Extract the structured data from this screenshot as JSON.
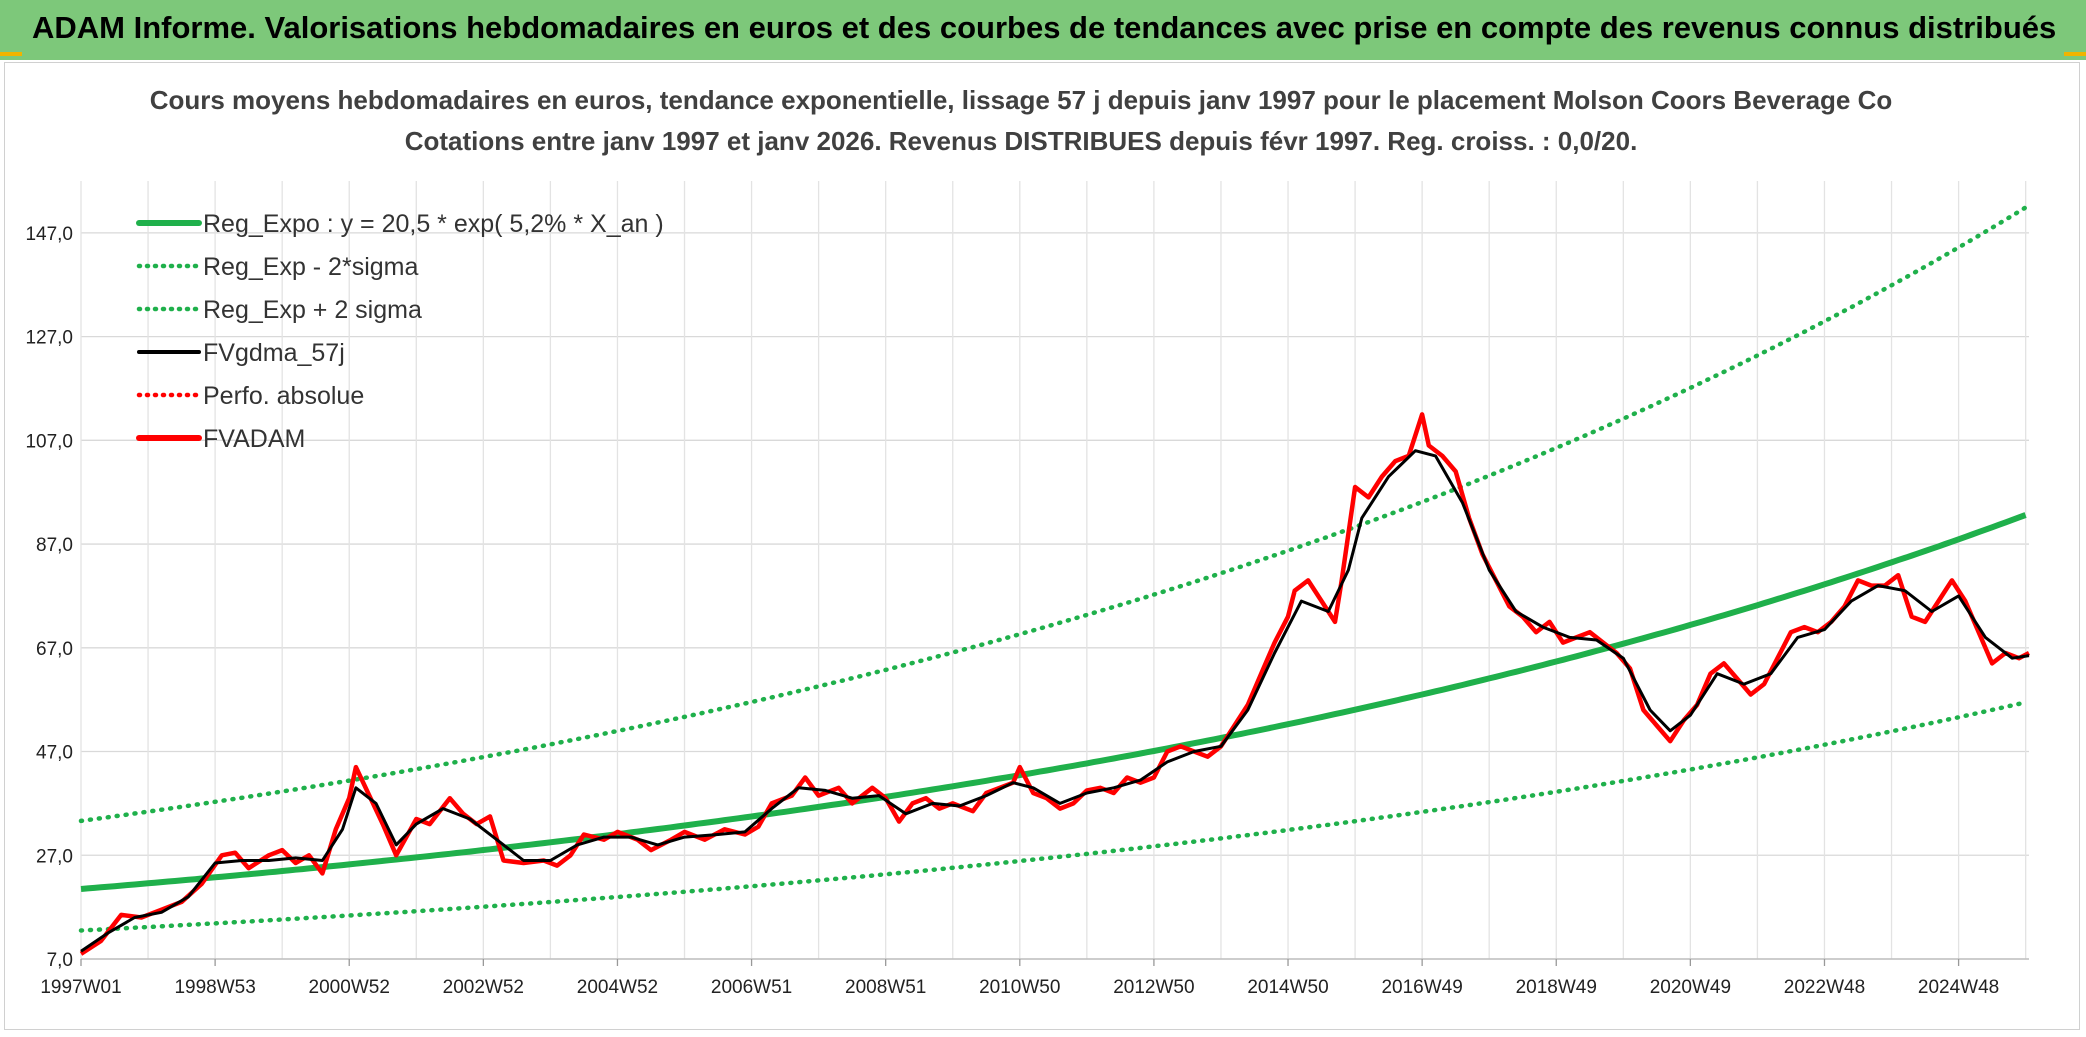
{
  "banner": {
    "title": "ADAM Informe. Valorisations hebdomadaires en euros et des courbes de tendances avec prise en compte des revenus connus distribués",
    "color": "#7dc87a"
  },
  "chart_data": {
    "type": "line",
    "title_lines": [
      "Cours moyens hebdomadaires en euros, tendance exponentielle, lissage 57 j depuis janv 1997 pour le placement Molson Coors Beverage Co",
      "Cotations entre janv 1997 et janv 2026. Revenus DISTRIBUES depuis févr 1997. Reg. croiss. : 0,0/20."
    ],
    "xlabel": "",
    "ylabel": "",
    "x_tick_labels": [
      "1997W01",
      "1998W53",
      "2000W52",
      "2002W52",
      "2004W52",
      "2006W51",
      "2008W51",
      "2010W50",
      "2012W50",
      "2014W50",
      "2016W49",
      "2018W49",
      "2020W49",
      "2022W48",
      "2024W48"
    ],
    "x_tick_years": [
      1997.0,
      1999.0,
      2001.0,
      2003.0,
      2005.0,
      2007.0,
      2009.0,
      2011.0,
      2013.0,
      2015.0,
      2017.0,
      2019.0,
      2021.0,
      2023.0,
      2025.0
    ],
    "x_range": [
      1997.0,
      2026.05
    ],
    "y_tick_labels": [
      "7,0",
      "27,0",
      "47,0",
      "67,0",
      "87,0",
      "107,0",
      "127,0",
      "147,0"
    ],
    "y_ticks": [
      7,
      27,
      47,
      67,
      87,
      107,
      127,
      147
    ],
    "ylim": [
      7,
      157
    ],
    "grid": true,
    "legend_position": "top-left",
    "regression": {
      "a": 20.5,
      "growth": 0.052,
      "sigma_factor": 1.64
    },
    "legend": [
      {
        "label": "Reg_Expo : y = 20,5 * exp( 5,2% *  X_an )",
        "color": "#1fb04b",
        "style": "solid-thick"
      },
      {
        "label": "Reg_Exp - 2*sigma",
        "color": "#1fb04b",
        "style": "dotted"
      },
      {
        "label": "Reg_Exp + 2 sigma",
        "color": "#1fb04b",
        "style": "dotted"
      },
      {
        "label": "FVgdma_57j",
        "color": "#000000",
        "style": "solid"
      },
      {
        "label": "Perfo. absolue",
        "color": "#ff0000",
        "style": "dotted"
      },
      {
        "label": "FVADAM",
        "color": "#ff0000",
        "style": "solid-thick"
      }
    ],
    "series": [
      {
        "name": "FVADAM",
        "points": [
          [
            1997.0,
            8.0
          ],
          [
            1997.3,
            10.5
          ],
          [
            1997.6,
            15.5
          ],
          [
            1997.9,
            15.0
          ],
          [
            1998.2,
            16.5
          ],
          [
            1998.5,
            18.0
          ],
          [
            1998.8,
            21.5
          ],
          [
            1999.1,
            27.0
          ],
          [
            1999.3,
            27.5
          ],
          [
            1999.5,
            24.5
          ],
          [
            1999.8,
            27.0
          ],
          [
            2000.0,
            28.0
          ],
          [
            2000.2,
            25.5
          ],
          [
            2000.4,
            27.0
          ],
          [
            2000.6,
            23.5
          ],
          [
            2000.8,
            32.0
          ],
          [
            2001.0,
            38.0
          ],
          [
            2001.1,
            44.0
          ],
          [
            2001.3,
            38.5
          ],
          [
            2001.5,
            33.0
          ],
          [
            2001.7,
            27.0
          ],
          [
            2002.0,
            34.0
          ],
          [
            2002.2,
            33.0
          ],
          [
            2002.5,
            38.0
          ],
          [
            2002.7,
            35.0
          ],
          [
            2002.9,
            33.0
          ],
          [
            2003.1,
            34.5
          ],
          [
            2003.3,
            26.0
          ],
          [
            2003.6,
            25.5
          ],
          [
            2003.9,
            26.0
          ],
          [
            2004.1,
            25.0
          ],
          [
            2004.3,
            27.0
          ],
          [
            2004.5,
            31.0
          ],
          [
            2004.8,
            30.0
          ],
          [
            2005.0,
            31.5
          ],
          [
            2005.3,
            30.0
          ],
          [
            2005.5,
            28.0
          ],
          [
            2005.8,
            30.0
          ],
          [
            2006.0,
            31.5
          ],
          [
            2006.3,
            30.0
          ],
          [
            2006.6,
            32.0
          ],
          [
            2006.9,
            31.0
          ],
          [
            2007.1,
            32.5
          ],
          [
            2007.3,
            37.0
          ],
          [
            2007.6,
            38.5
          ],
          [
            2007.8,
            42.0
          ],
          [
            2008.0,
            38.5
          ],
          [
            2008.3,
            40.0
          ],
          [
            2008.5,
            37.0
          ],
          [
            2008.8,
            40.0
          ],
          [
            2009.0,
            38.0
          ],
          [
            2009.2,
            33.5
          ],
          [
            2009.4,
            37.0
          ],
          [
            2009.6,
            38.0
          ],
          [
            2009.8,
            36.0
          ],
          [
            2010.0,
            37.0
          ],
          [
            2010.3,
            35.5
          ],
          [
            2010.5,
            39.0
          ],
          [
            2010.7,
            40.0
          ],
          [
            2010.9,
            41.0
          ],
          [
            2011.0,
            44.0
          ],
          [
            2011.2,
            39.0
          ],
          [
            2011.4,
            38.0
          ],
          [
            2011.6,
            36.0
          ],
          [
            2011.8,
            37.0
          ],
          [
            2012.0,
            39.5
          ],
          [
            2012.2,
            40.0
          ],
          [
            2012.4,
            39.0
          ],
          [
            2012.6,
            42.0
          ],
          [
            2012.8,
            41.0
          ],
          [
            2013.0,
            42.0
          ],
          [
            2013.2,
            47.0
          ],
          [
            2013.4,
            48.0
          ],
          [
            2013.6,
            47.0
          ],
          [
            2013.8,
            46.0
          ],
          [
            2014.0,
            48.0
          ],
          [
            2014.2,
            52.0
          ],
          [
            2014.4,
            56.0
          ],
          [
            2014.6,
            62.0
          ],
          [
            2014.8,
            68.0
          ],
          [
            2015.0,
            73.0
          ],
          [
            2015.1,
            78.0
          ],
          [
            2015.3,
            80.0
          ],
          [
            2015.5,
            76.0
          ],
          [
            2015.7,
            72.0
          ],
          [
            2015.8,
            80.0
          ],
          [
            2016.0,
            98.0
          ],
          [
            2016.2,
            96.0
          ],
          [
            2016.4,
            100.0
          ],
          [
            2016.6,
            103.0
          ],
          [
            2016.8,
            104.0
          ],
          [
            2017.0,
            112.0
          ],
          [
            2017.1,
            106.0
          ],
          [
            2017.3,
            104.0
          ],
          [
            2017.5,
            101.0
          ],
          [
            2017.7,
            92.0
          ],
          [
            2017.9,
            85.0
          ],
          [
            2018.1,
            80.0
          ],
          [
            2018.3,
            75.0
          ],
          [
            2018.5,
            73.0
          ],
          [
            2018.7,
            70.0
          ],
          [
            2018.9,
            72.0
          ],
          [
            2019.1,
            68.0
          ],
          [
            2019.3,
            69.0
          ],
          [
            2019.5,
            70.0
          ],
          [
            2019.7,
            68.0
          ],
          [
            2019.9,
            66.0
          ],
          [
            2020.1,
            63.0
          ],
          [
            2020.3,
            55.0
          ],
          [
            2020.5,
            52.0
          ],
          [
            2020.7,
            49.0
          ],
          [
            2020.9,
            53.0
          ],
          [
            2021.1,
            56.0
          ],
          [
            2021.3,
            62.0
          ],
          [
            2021.5,
            64.0
          ],
          [
            2021.7,
            61.0
          ],
          [
            2021.9,
            58.0
          ],
          [
            2022.1,
            60.0
          ],
          [
            2022.3,
            65.0
          ],
          [
            2022.5,
            70.0
          ],
          [
            2022.7,
            71.0
          ],
          [
            2022.9,
            70.0
          ],
          [
            2023.1,
            72.0
          ],
          [
            2023.3,
            75.0
          ],
          [
            2023.5,
            80.0
          ],
          [
            2023.7,
            79.0
          ],
          [
            2023.9,
            79.0
          ],
          [
            2024.1,
            81.0
          ],
          [
            2024.3,
            73.0
          ],
          [
            2024.5,
            72.0
          ],
          [
            2024.7,
            76.0
          ],
          [
            2024.9,
            80.0
          ],
          [
            2025.1,
            76.0
          ],
          [
            2025.3,
            70.0
          ],
          [
            2025.5,
            64.0
          ],
          [
            2025.7,
            66.0
          ],
          [
            2025.9,
            65.0
          ],
          [
            2026.05,
            66.0
          ]
        ]
      },
      {
        "name": "FVgdma_57j",
        "points": [
          [
            1997.0,
            8.5
          ],
          [
            1997.4,
            12.0
          ],
          [
            1997.8,
            15.0
          ],
          [
            1998.2,
            16.0
          ],
          [
            1998.6,
            19.0
          ],
          [
            1999.0,
            25.5
          ],
          [
            1999.4,
            26.0
          ],
          [
            1999.8,
            26.0
          ],
          [
            2000.2,
            26.5
          ],
          [
            2000.6,
            26.0
          ],
          [
            2000.9,
            32.0
          ],
          [
            2001.1,
            40.0
          ],
          [
            2001.4,
            37.0
          ],
          [
            2001.7,
            29.0
          ],
          [
            2002.0,
            33.0
          ],
          [
            2002.4,
            36.0
          ],
          [
            2002.8,
            34.0
          ],
          [
            2003.2,
            30.0
          ],
          [
            2003.6,
            26.0
          ],
          [
            2004.0,
            26.0
          ],
          [
            2004.4,
            29.0
          ],
          [
            2004.8,
            30.5
          ],
          [
            2005.2,
            30.5
          ],
          [
            2005.6,
            29.0
          ],
          [
            2006.0,
            30.5
          ],
          [
            2006.5,
            31.0
          ],
          [
            2006.9,
            31.5
          ],
          [
            2007.3,
            36.0
          ],
          [
            2007.7,
            40.0
          ],
          [
            2008.1,
            39.5
          ],
          [
            2008.5,
            38.0
          ],
          [
            2008.9,
            38.5
          ],
          [
            2009.3,
            35.0
          ],
          [
            2009.7,
            37.0
          ],
          [
            2010.1,
            36.5
          ],
          [
            2010.5,
            38.5
          ],
          [
            2010.9,
            41.0
          ],
          [
            2011.2,
            40.0
          ],
          [
            2011.6,
            37.0
          ],
          [
            2012.0,
            39.0
          ],
          [
            2012.4,
            40.0
          ],
          [
            2012.8,
            41.5
          ],
          [
            2013.2,
            45.0
          ],
          [
            2013.6,
            47.0
          ],
          [
            2014.0,
            48.0
          ],
          [
            2014.4,
            55.0
          ],
          [
            2014.8,
            66.0
          ],
          [
            2015.2,
            76.0
          ],
          [
            2015.6,
            74.0
          ],
          [
            2015.9,
            82.0
          ],
          [
            2016.1,
            92.0
          ],
          [
            2016.5,
            100.0
          ],
          [
            2016.9,
            105.0
          ],
          [
            2017.2,
            104.0
          ],
          [
            2017.6,
            95.0
          ],
          [
            2018.0,
            82.0
          ],
          [
            2018.4,
            74.0
          ],
          [
            2018.8,
            71.0
          ],
          [
            2019.2,
            69.0
          ],
          [
            2019.6,
            68.5
          ],
          [
            2020.0,
            65.0
          ],
          [
            2020.4,
            55.0
          ],
          [
            2020.7,
            51.0
          ],
          [
            2021.0,
            54.0
          ],
          [
            2021.4,
            62.0
          ],
          [
            2021.8,
            60.0
          ],
          [
            2022.2,
            62.0
          ],
          [
            2022.6,
            69.0
          ],
          [
            2023.0,
            70.5
          ],
          [
            2023.4,
            76.0
          ],
          [
            2023.8,
            79.0
          ],
          [
            2024.2,
            78.0
          ],
          [
            2024.6,
            74.0
          ],
          [
            2025.0,
            77.0
          ],
          [
            2025.4,
            69.0
          ],
          [
            2025.8,
            65.0
          ],
          [
            2026.05,
            65.5
          ]
        ]
      }
    ]
  }
}
